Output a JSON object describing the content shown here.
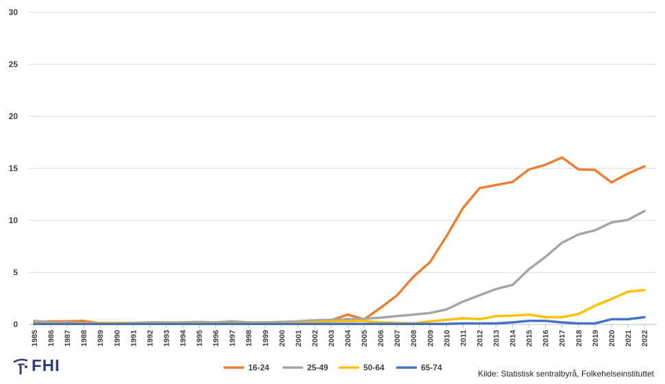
{
  "chart_data": {
    "type": "line",
    "title": "",
    "xlabel": "",
    "ylabel": "",
    "ylim": [
      0,
      30
    ],
    "yticks": [
      0,
      5,
      10,
      15,
      20,
      25,
      30
    ],
    "grid": "horizontal",
    "legend_position": "bottom",
    "x": [
      "1985",
      "1986",
      "1987",
      "1988",
      "1989",
      "1990",
      "1991",
      "1992",
      "1993",
      "1994",
      "1995",
      "1996",
      "1997",
      "1998",
      "1999",
      "2000",
      "2001",
      "2002",
      "2003",
      "2004",
      "2005",
      "2006",
      "2007",
      "2008",
      "2009",
      "2010",
      "2011",
      "2012",
      "2013",
      "2014",
      "2015",
      "2016",
      "2017",
      "2018",
      "2019",
      "2020",
      "2021",
      "2022"
    ],
    "series": [
      {
        "name": "16-24",
        "color": "#ED7D31",
        "values": [
          0.2,
          0.3,
          0.3,
          0.35,
          0.1,
          0.1,
          0.05,
          0.2,
          0.15,
          0.15,
          0.15,
          0.15,
          0.15,
          0.15,
          0.15,
          0.2,
          0.2,
          0.35,
          0.4,
          0.95,
          0.5,
          1.6,
          2.8,
          4.6,
          6.0,
          8.5,
          11.2,
          13.1,
          13.4,
          13.7,
          14.9,
          15.35,
          16.05,
          14.9,
          14.85,
          13.65,
          14.5,
          15.2
        ]
      },
      {
        "name": "25-49",
        "color": "#A5A5A5",
        "values": [
          0.35,
          0.2,
          0.2,
          0.15,
          0.15,
          0.15,
          0.15,
          0.2,
          0.2,
          0.2,
          0.25,
          0.2,
          0.3,
          0.2,
          0.2,
          0.25,
          0.3,
          0.4,
          0.45,
          0.5,
          0.55,
          0.65,
          0.8,
          0.95,
          1.1,
          1.45,
          2.2,
          2.8,
          3.4,
          3.8,
          5.3,
          6.5,
          7.85,
          8.65,
          9.05,
          9.8,
          10.05,
          10.9
        ]
      },
      {
        "name": "50-64",
        "color": "#FFC000",
        "values": [
          0.1,
          0.1,
          0.1,
          0.1,
          0.15,
          0.15,
          0.1,
          0.1,
          0.1,
          0.1,
          0.1,
          0.1,
          0.1,
          0.1,
          0.1,
          0.1,
          0.15,
          0.2,
          0.3,
          0.3,
          0.35,
          0.2,
          0.15,
          0.1,
          0.3,
          0.45,
          0.6,
          0.5,
          0.8,
          0.85,
          0.95,
          0.7,
          0.7,
          1.0,
          1.8,
          2.45,
          3.15,
          3.3
        ]
      },
      {
        "name": "65-74",
        "color": "#4472C4",
        "values": [
          0.05,
          0.05,
          0.05,
          0.05,
          0.05,
          0.05,
          0.05,
          0.05,
          0.05,
          0.05,
          0.05,
          0.05,
          0.05,
          0.05,
          0.05,
          0.05,
          0.05,
          0.05,
          0.05,
          0.05,
          0.05,
          0.05,
          0.05,
          0.05,
          0.05,
          0.05,
          0.1,
          0.1,
          0.1,
          0.2,
          0.35,
          0.35,
          0.2,
          0.1,
          0.1,
          0.5,
          0.5,
          0.7
        ]
      }
    ]
  },
  "logo": {
    "text": "FHI"
  },
  "source_text": "Kilde: Statistisk sentralbyrå, Folkehelseinstituttet"
}
